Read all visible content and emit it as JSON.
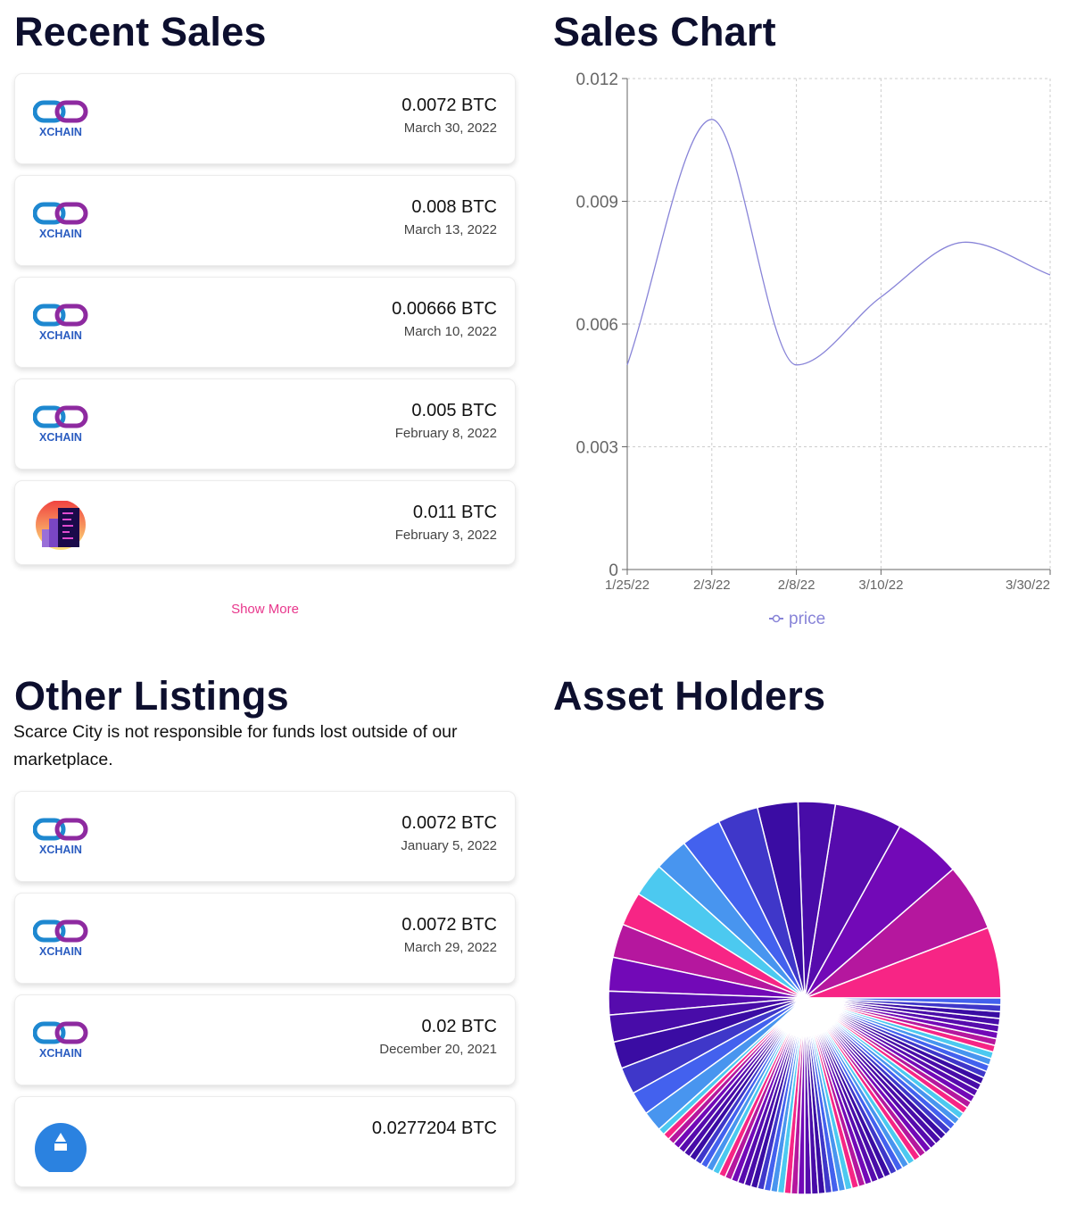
{
  "recent_sales": {
    "title": "Recent Sales",
    "items": [
      {
        "icon": "xchain-logo",
        "logo_text": "XCHAIN",
        "price": "0.0072 BTC",
        "date": "March 30, 2022"
      },
      {
        "icon": "xchain-logo",
        "logo_text": "XCHAIN",
        "price": "0.008 BTC",
        "date": "March 13, 2022"
      },
      {
        "icon": "xchain-logo",
        "logo_text": "XCHAIN",
        "price": "0.00666 BTC",
        "date": "March 10, 2022"
      },
      {
        "icon": "xchain-logo",
        "logo_text": "XCHAIN",
        "price": "0.005 BTC",
        "date": "February 8, 2022"
      },
      {
        "icon": "city-logo",
        "price": "0.011 BTC",
        "date": "February 3, 2022"
      }
    ],
    "show_more": "Show More"
  },
  "other_listings": {
    "title": "Other Listings",
    "subtitle": "Scarce City is not responsible for funds lost outside of our marketplace.",
    "items": [
      {
        "icon": "xchain-logo",
        "logo_text": "XCHAIN",
        "price": "0.0072 BTC",
        "date": "January 5, 2022"
      },
      {
        "icon": "xchain-logo",
        "logo_text": "XCHAIN",
        "price": "0.0072 BTC",
        "date": "March 29, 2022"
      },
      {
        "icon": "xchain-logo",
        "logo_text": "XCHAIN",
        "price": "0.02 BTC",
        "date": "December 20, 2021"
      },
      {
        "icon": "blue-circle-logo",
        "price": "0.0277204 BTC",
        "date": ""
      }
    ]
  },
  "sales_chart": {
    "title": "Sales Chart"
  },
  "asset_holders": {
    "title": "Asset Holders"
  },
  "chart_data": [
    {
      "type": "line",
      "title": "Sales Chart",
      "x_labels": [
        "1/25/22",
        "2/3/22",
        "2/8/22",
        "3/10/22",
        "",
        "3/30/22"
      ],
      "series": [
        {
          "name": "price",
          "color": "#8884d8",
          "values": [
            0.005,
            0.011,
            0.005,
            0.00666,
            0.008,
            0.0072
          ]
        }
      ],
      "ylim": [
        0,
        0.012
      ],
      "y_ticks": [
        "0",
        "0.003",
        "0.006",
        "0.009",
        "0.012"
      ],
      "y_tick_values": [
        0,
        0.003,
        0.006,
        0.009,
        0.012
      ],
      "grid": true,
      "legend": "bottom-center",
      "curve": "monotone"
    },
    {
      "type": "pie",
      "title": "Asset Holders",
      "palette": [
        "#F72585",
        "#B5179E",
        "#7209B7",
        "#560BAD",
        "#480CA8",
        "#3A0CA3",
        "#3F37C9",
        "#4361EE",
        "#4895EF",
        "#4CC9F0"
      ],
      "values": [
        21,
        20,
        20,
        20,
        11,
        12,
        12,
        12,
        10,
        10,
        10,
        10,
        10,
        7,
        8,
        8,
        8,
        7,
        6,
        2,
        2,
        2,
        2,
        2,
        2,
        2,
        2,
        2,
        2,
        2,
        2,
        2,
        2,
        2,
        2,
        2,
        2,
        2,
        2,
        2,
        2,
        2,
        2,
        2,
        2,
        2,
        2,
        2,
        2,
        2,
        2,
        2,
        2,
        2,
        2,
        2,
        2,
        2,
        2,
        2,
        2,
        2,
        2,
        2,
        2,
        2,
        2,
        2,
        2,
        2,
        2,
        2,
        2,
        2,
        2,
        2,
        2,
        2,
        2,
        2,
        2,
        2,
        2,
        2,
        2,
        2,
        2,
        2
      ]
    }
  ]
}
